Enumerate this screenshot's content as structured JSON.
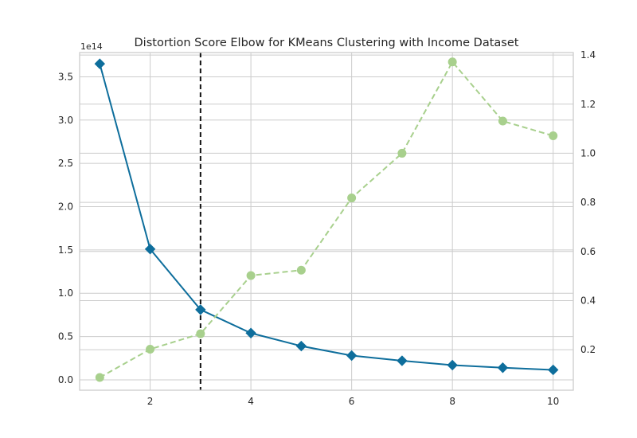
{
  "chart_data": {
    "type": "line",
    "title": "Distortion Score Elbow for KMeans Clustering with Income Dataset",
    "xlabel": "",
    "ylabel": "",
    "y2label": "",
    "x": [
      1,
      2,
      3,
      4,
      5,
      6,
      7,
      8,
      9,
      10
    ],
    "xlim": [
      0.6,
      10.4
    ],
    "ylim": [
      -12000000000000.0,
      378000000000000.0
    ],
    "y2lim": [
      0.035,
      1.41
    ],
    "x_ticks": [
      "2",
      "4",
      "6",
      "8",
      "10"
    ],
    "y_ticks": [
      "0.0",
      "0.5",
      "1.0",
      "1.5",
      "2.0",
      "2.5",
      "3.0",
      "3.5"
    ],
    "y2_ticks": [
      "0.2",
      "0.4",
      "0.6",
      "0.8",
      "1.0",
      "1.2",
      "1.4"
    ],
    "y_offset_label": "1e14",
    "series": [
      {
        "axis": "left",
        "marker": "diamond",
        "style": "solid",
        "color": "#0e6e9c",
        "values": [
          365000000000000.0,
          151000000000000.0,
          81000000000000.0,
          54000000000000.0,
          39000000000000.0,
          28000000000000.0,
          22000000000000.0,
          17000000000000.0,
          14000000000000.0,
          11500000000000.0
        ]
      },
      {
        "axis": "right",
        "marker": "circle",
        "style": "dashed",
        "color": "#a8d08d",
        "values": [
          0.087,
          0.202,
          0.265,
          0.502,
          0.524,
          0.818,
          1.0,
          1.372,
          1.131,
          1.071
        ]
      }
    ],
    "elbow": {
      "x": 3,
      "color": "#111111",
      "style": "dashed"
    },
    "grid": true
  }
}
